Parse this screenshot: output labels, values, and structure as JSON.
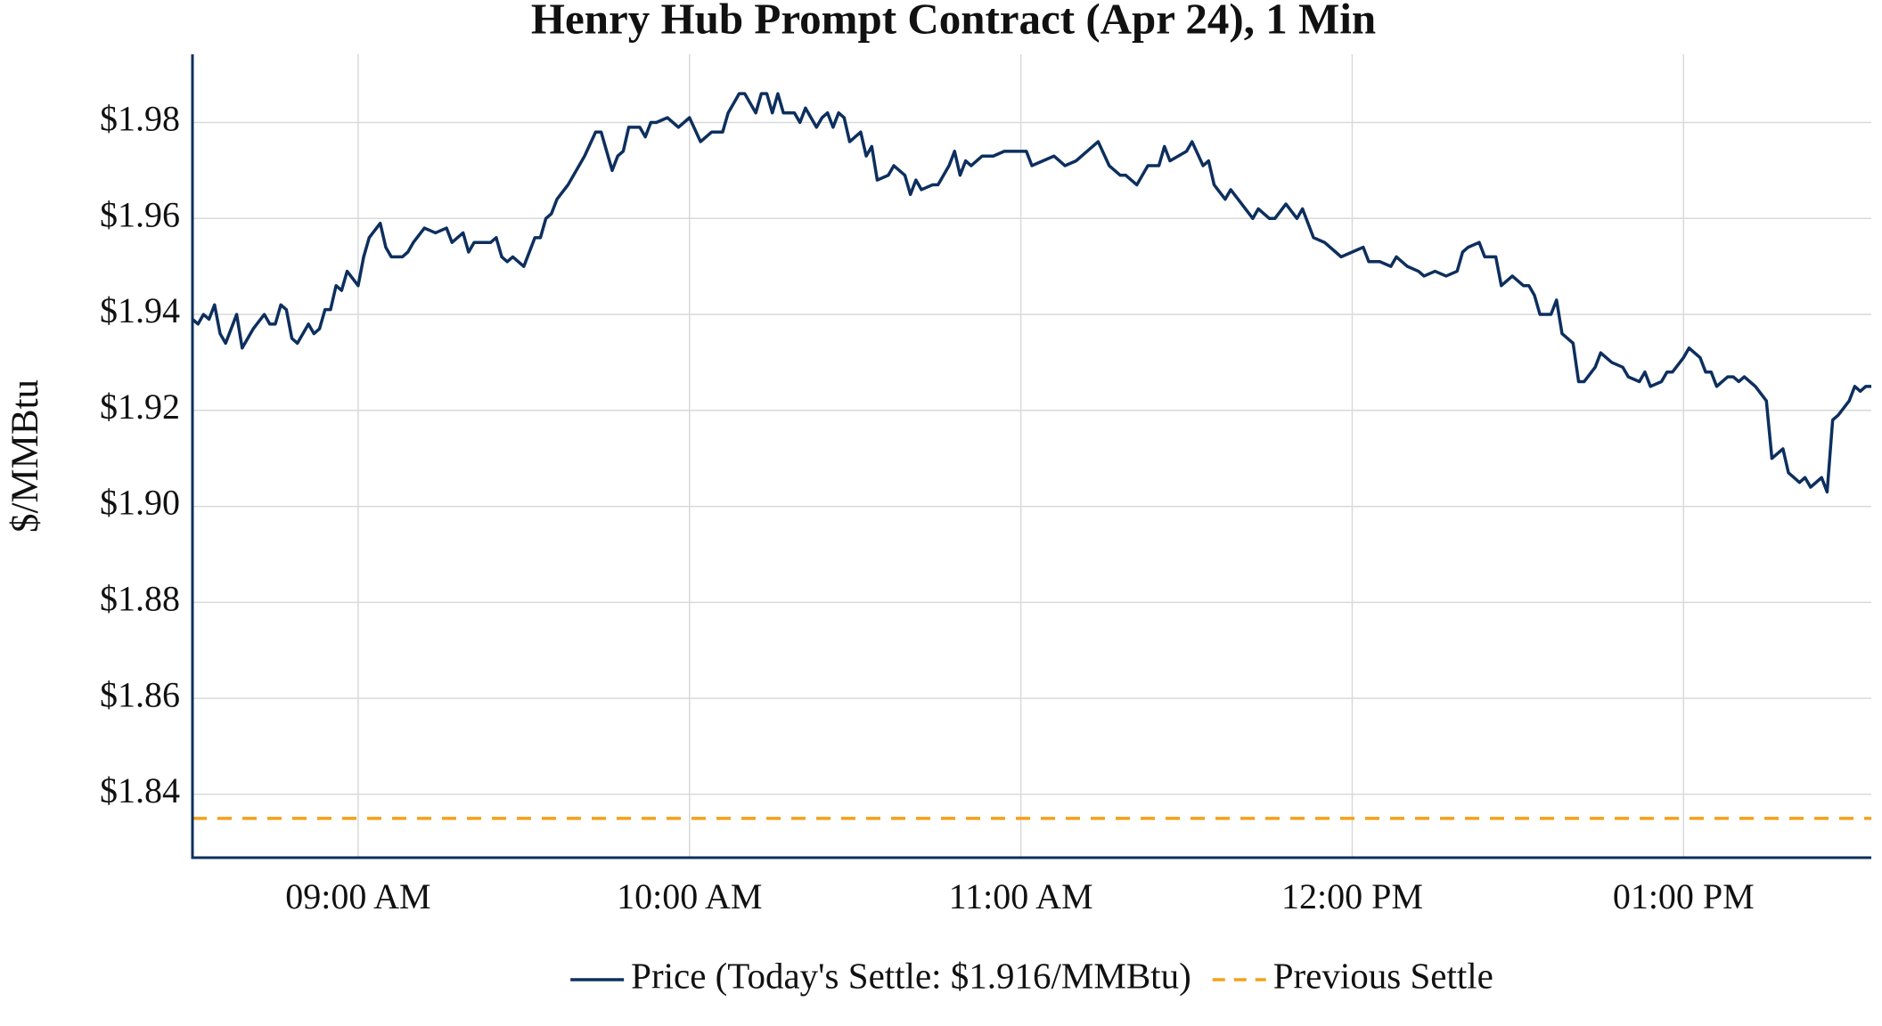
{
  "chart_data": {
    "type": "line",
    "title": "Henry Hub Prompt Contract (Apr 24), 1 Min",
    "y_label": "$/MMBtu",
    "grid": true,
    "legend": "bottom",
    "x": [
      "08:30 AM",
      "08:31 AM",
      "08:32 AM",
      "08:33 AM",
      "08:34 AM",
      "08:35 AM",
      "08:36 AM",
      "08:38 AM",
      "08:39 AM",
      "08:41 AM",
      "08:43 AM",
      "08:44 AM",
      "08:45 AM",
      "08:46 AM",
      "08:47 AM",
      "08:48 AM",
      "08:49 AM",
      "08:51 AM",
      "08:52 AM",
      "08:53 AM",
      "08:54 AM",
      "08:55 AM",
      "08:56 AM",
      "08:57 AM",
      "08:58 AM",
      "09:00 AM",
      "09:01 AM",
      "09:02 AM",
      "09:04 AM",
      "09:05 AM",
      "09:06 AM",
      "09:08 AM",
      "09:09 AM",
      "09:10 AM",
      "09:12 AM",
      "09:14 AM",
      "09:16 AM",
      "09:17 AM",
      "09:19 AM",
      "09:20 AM",
      "09:21 AM",
      "09:24 AM",
      "09:25 AM",
      "09:26 AM",
      "09:27 AM",
      "09:28 AM",
      "09:30 AM",
      "09:32 AM",
      "09:33 AM",
      "09:34 AM",
      "09:35 AM",
      "09:36 AM",
      "09:38 AM",
      "09:41 AM",
      "09:43 AM",
      "09:44 AM",
      "09:45 AM",
      "09:46 AM",
      "09:47 AM",
      "09:48 AM",
      "09:49 AM",
      "09:51 AM",
      "09:52 AM",
      "09:53 AM",
      "09:54 AM",
      "09:56 AM",
      "09:58 AM",
      "10:00 AM",
      "10:02 AM",
      "10:04 AM",
      "10:06 AM",
      "10:07 AM",
      "10:08 AM",
      "10:09 AM",
      "10:10 AM",
      "10:12 AM",
      "10:13 AM",
      "10:14 AM",
      "10:15 AM",
      "10:16 AM",
      "10:17 AM",
      "10:19 AM",
      "10:20 AM",
      "10:21 AM",
      "10:23 AM",
      "10:24 AM",
      "10:25 AM",
      "10:26 AM",
      "10:27 AM",
      "10:28 AM",
      "10:29 AM",
      "10:31 AM",
      "10:32 AM",
      "10:33 AM",
      "10:34 AM",
      "10:36 AM",
      "10:37 AM",
      "10:39 AM",
      "10:40 AM",
      "10:41 AM",
      "10:42 AM",
      "10:44 AM",
      "10:45 AM",
      "10:47 AM",
      "10:48 AM",
      "10:49 AM",
      "10:50 AM",
      "10:51 AM",
      "10:53 AM",
      "10:55 AM",
      "10:57 AM",
      "10:59 AM",
      "11:01 AM",
      "11:02 AM",
      "11:04 AM",
      "11:06 AM",
      "11:08 AM",
      "11:10 AM",
      "11:12 AM",
      "11:14 AM",
      "11:16 AM",
      "11:18 AM",
      "11:19 AM",
      "11:21 AM",
      "11:23 AM",
      "11:25 AM",
      "11:26 AM",
      "11:27 AM",
      "11:30 AM",
      "11:31 AM",
      "11:33 AM",
      "11:34 AM",
      "11:35 AM",
      "11:37 AM",
      "11:38 AM",
      "11:40 AM",
      "11:42 AM",
      "11:43 AM",
      "11:45 AM",
      "11:46 AM",
      "11:48 AM",
      "11:50 AM",
      "11:51 AM",
      "11:53 AM",
      "11:55 AM",
      "11:57 AM",
      "11:58 AM",
      "12:00 PM",
      "12:02 PM",
      "12:03 PM",
      "12:05 PM",
      "12:07 PM",
      "12:08 PM",
      "12:10 PM",
      "12:12 PM",
      "12:13 PM",
      "12:15 PM",
      "12:17 PM",
      "12:19 PM",
      "12:20 PM",
      "12:21 PM",
      "12:23 PM",
      "12:24 PM",
      "12:26 PM",
      "12:27 PM",
      "12:29 PM",
      "12:31 PM",
      "12:32 PM",
      "12:33 PM",
      "12:34 PM",
      "12:36 PM",
      "12:37 PM",
      "12:38 PM",
      "12:40 PM",
      "12:41 PM",
      "12:42 PM",
      "12:44 PM",
      "12:45 PM",
      "12:47 PM",
      "12:49 PM",
      "12:50 PM",
      "12:52 PM",
      "12:53 PM",
      "12:54 PM",
      "12:56 PM",
      "12:57 PM",
      "12:58 PM",
      "01:00 PM",
      "01:01 PM",
      "01:03 PM",
      "01:04 PM",
      "01:05 PM",
      "01:06 PM",
      "01:08 PM",
      "01:09 PM",
      "01:10 PM",
      "01:11 PM",
      "01:13 PM",
      "01:15 PM",
      "01:16 PM",
      "01:18 PM",
      "01:19 PM",
      "01:21 PM",
      "01:22 PM",
      "01:23 PM",
      "01:25 PM",
      "01:26 PM",
      "01:27 PM",
      "01:28 PM",
      "01:30 PM",
      "01:31 PM",
      "01:32 PM",
      "01:33 PM",
      "01:34 PM"
    ],
    "series": [
      {
        "name": "Price (Today's Settle: $1.916/MMBtu)",
        "color": "#0d2f5e",
        "values": [
          1.939,
          1.938,
          1.94,
          1.939,
          1.942,
          1.936,
          1.934,
          1.94,
          1.933,
          1.937,
          1.94,
          1.938,
          1.938,
          1.942,
          1.941,
          1.935,
          1.934,
          1.938,
          1.936,
          1.937,
          1.941,
          1.941,
          1.946,
          1.945,
          1.949,
          1.946,
          1.952,
          1.956,
          1.959,
          1.954,
          1.952,
          1.952,
          1.953,
          1.955,
          1.958,
          1.957,
          1.958,
          1.955,
          1.957,
          1.953,
          1.955,
          1.955,
          1.956,
          1.952,
          1.951,
          1.952,
          1.95,
          1.956,
          1.956,
          1.96,
          1.961,
          1.964,
          1.967,
          1.973,
          1.978,
          1.978,
          1.974,
          1.97,
          1.973,
          1.974,
          1.979,
          1.979,
          1.977,
          1.98,
          1.98,
          1.981,
          1.979,
          1.981,
          1.976,
          1.978,
          1.978,
          1.982,
          1.984,
          1.986,
          1.986,
          1.982,
          1.986,
          1.986,
          1.982,
          1.986,
          1.982,
          1.982,
          1.98,
          1.983,
          1.979,
          1.981,
          1.982,
          1.979,
          1.982,
          1.981,
          1.976,
          1.978,
          1.973,
          1.975,
          1.968,
          1.969,
          1.971,
          1.969,
          1.965,
          1.968,
          1.966,
          1.967,
          1.967,
          1.971,
          1.974,
          1.969,
          1.972,
          1.971,
          1.973,
          1.973,
          1.974,
          1.974,
          1.974,
          1.971,
          1.972,
          1.973,
          1.971,
          1.972,
          1.974,
          1.976,
          1.971,
          1.969,
          1.969,
          1.967,
          1.971,
          1.971,
          1.975,
          1.972,
          1.974,
          1.976,
          1.971,
          1.972,
          1.967,
          1.964,
          1.966,
          1.963,
          1.96,
          1.962,
          1.96,
          1.96,
          1.963,
          1.96,
          1.962,
          1.956,
          1.955,
          1.953,
          1.952,
          1.953,
          1.954,
          1.951,
          1.951,
          1.95,
          1.952,
          1.95,
          1.949,
          1.948,
          1.949,
          1.948,
          1.949,
          1.953,
          1.954,
          1.955,
          1.952,
          1.952,
          1.946,
          1.948,
          1.946,
          1.946,
          1.944,
          1.94,
          1.94,
          1.943,
          1.936,
          1.934,
          1.926,
          1.926,
          1.929,
          1.932,
          1.93,
          1.929,
          1.927,
          1.926,
          1.928,
          1.925,
          1.926,
          1.928,
          1.928,
          1.931,
          1.933,
          1.931,
          1.928,
          1.928,
          1.925,
          1.927,
          1.927,
          1.926,
          1.927,
          1.925,
          1.922,
          1.91,
          1.912,
          1.907,
          1.905,
          1.906,
          1.904,
          1.906,
          1.903,
          1.918,
          1.919,
          1.922,
          1.925,
          1.924,
          1.925,
          1.925
        ]
      }
    ],
    "reference_lines": [
      {
        "name": "Previous Settle",
        "value": 1.835,
        "color": "#f5a01a",
        "dashed": true
      }
    ],
    "xlim": [
      "08:30 AM",
      "01:34 PM"
    ],
    "xticks": [
      "09:00 AM",
      "10:00 AM",
      "11:00 AM",
      "12:00 PM",
      "01:00 PM"
    ],
    "ylim": [
      1.8268,
      1.9942
    ],
    "yticks": [
      {
        "value": 1.84,
        "label": "$1.84"
      },
      {
        "value": 1.86,
        "label": "$1.86"
      },
      {
        "value": 1.88,
        "label": "$1.88"
      },
      {
        "value": 1.9,
        "label": "$1.90"
      },
      {
        "value": 1.92,
        "label": "$1.92"
      },
      {
        "value": 1.94,
        "label": "$1.94"
      },
      {
        "value": 1.96,
        "label": "$1.96"
      },
      {
        "value": 1.98,
        "label": "$1.98"
      }
    ]
  }
}
